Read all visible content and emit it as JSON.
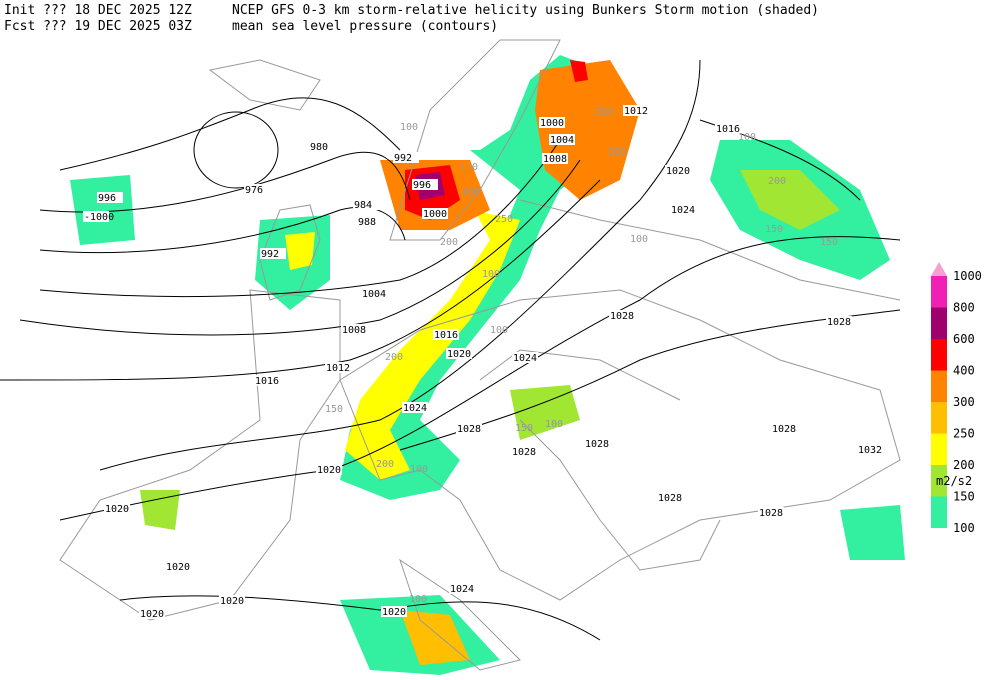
{
  "header": {
    "init": "Init  ??? 18 DEC 2025 12Z",
    "fcst": "Fcst ??? 19 DEC 2025 03Z",
    "title": "NCEP GFS 0-3 km storm-relative helicity using Bunkers Storm motion (shaded)",
    "subtitle": "mean sea level pressure (contours)"
  },
  "legend": {
    "levels": [
      {
        "label": "1000",
        "color": "#f5a0d0"
      },
      {
        "label": "800",
        "color": "#f020b4"
      },
      {
        "label": "600",
        "color": "#a0006e"
      },
      {
        "label": "400",
        "color": "#ff0000"
      },
      {
        "label": "300",
        "color": "#ff8200"
      },
      {
        "label": "250",
        "color": "#ffbe00"
      },
      {
        "label": "200",
        "color": "#ffff00"
      },
      {
        "label": "150",
        "color": "#a0e632"
      },
      {
        "label": "100",
        "color": "#32f0a0"
      }
    ],
    "unit": "m2/s2"
  },
  "contour_labels": [
    "980",
    "976",
    "984",
    "988",
    "992",
    "996",
    "1000",
    "996",
    "-1000",
    "992",
    "1004",
    "1008",
    "1012",
    "1016",
    "1016",
    "1020",
    "1024",
    "1024",
    "1028",
    "1028",
    "1028",
    "1028",
    "1032",
    "1028",
    "1028",
    "1028",
    "1028",
    "1020",
    "1020",
    "1020",
    "1020",
    "1020",
    "1024",
    "1020",
    "1000",
    "1004",
    "1008",
    "1012",
    "1016",
    "1020",
    "1024"
  ],
  "helicity_labels": [
    "100",
    "150",
    "200",
    "250",
    "400",
    "300",
    "200",
    "100",
    "150",
    "200",
    "100",
    "150",
    "100",
    "200",
    "150",
    "100",
    "100",
    "100",
    "200",
    "150",
    "100"
  ]
}
